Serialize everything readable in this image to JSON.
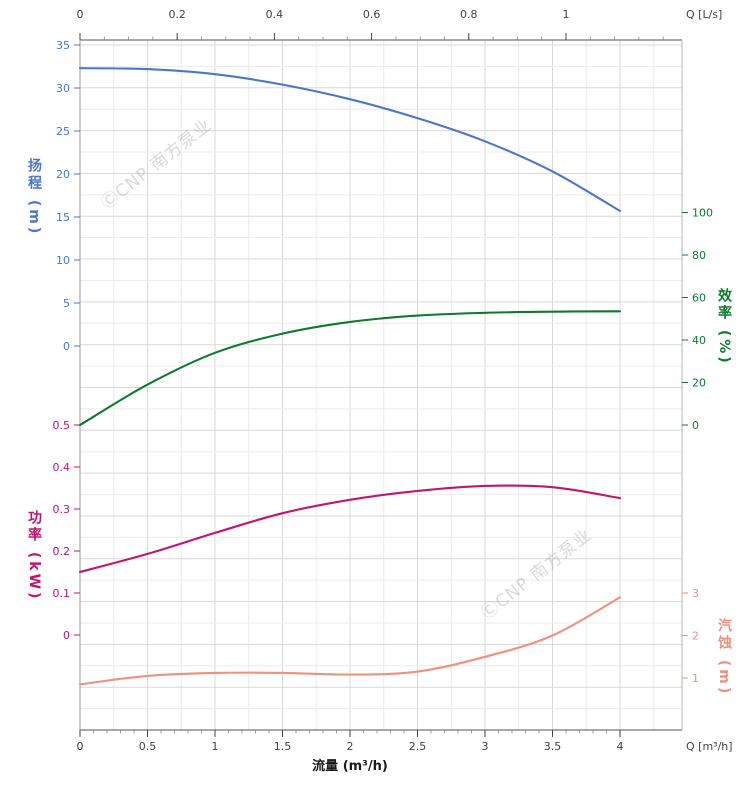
{
  "watermark": {
    "text": "ⒸCNP 南方泵业"
  },
  "labels": {
    "top_axis": "Q [L/s]",
    "bottom_axis": "Q [m³/h]",
    "flow_title": "流量 (m³/h)",
    "head": "扬程 (m)",
    "efficiency": "效率 (%)",
    "power": "功率 (kW)",
    "npsh": "汽蚀 (m)"
  },
  "chart_data": {
    "type": "line",
    "title": "",
    "grid": true,
    "x_axis_bottom": {
      "label": "流量 (m³/h)",
      "unit": "m³/h",
      "min": 0,
      "max": 4,
      "ticks": [
        0,
        0.5,
        1,
        1.5,
        2,
        2.5,
        3,
        3.5,
        4
      ]
    },
    "x_axis_top": {
      "label": "Q [L/s]",
      "unit": "L/s",
      "min": 0,
      "ticks": [
        0,
        0.2,
        0.4,
        0.6,
        0.8,
        1
      ],
      "m3h_per_unit": 3.6
    },
    "y_axes": {
      "head": {
        "label": "扬程 (m)",
        "color": "#4a76cf",
        "min": 0,
        "max": 35,
        "ticks": [
          35,
          30,
          25,
          20,
          15,
          10,
          5,
          0
        ]
      },
      "efficiency": {
        "label": "效率 (%)",
        "color": "#0e7a2e",
        "min": 0,
        "max": 100,
        "ticks": [
          100,
          80,
          60,
          40,
          20,
          0
        ]
      },
      "power": {
        "label": "功率 (kW)",
        "color": "#c2156d",
        "min": 0,
        "max": 0.5,
        "ticks": [
          0.5,
          0.4,
          0.3,
          0.2,
          0.1,
          0
        ]
      },
      "npsh": {
        "label": "汽蚀 (m)",
        "color": "#f0907e",
        "min": 0,
        "max": 3,
        "ticks": [
          3,
          2,
          1
        ]
      }
    },
    "series": [
      {
        "name": "head",
        "axis": "head",
        "color": "#4a76cf",
        "x": [
          0,
          0.5,
          1,
          1.5,
          2,
          2.5,
          3,
          3.5,
          4
        ],
        "y": [
          32.3,
          32.2,
          31.6,
          30.4,
          28.7,
          26.5,
          23.8,
          20.3,
          15.7
        ]
      },
      {
        "name": "efficiency",
        "axis": "efficiency",
        "color": "#0e7a2e",
        "x": [
          0,
          0.5,
          1,
          1.5,
          2,
          2.5,
          3,
          3.5,
          4
        ],
        "y": [
          0,
          19,
          34,
          43,
          48.5,
          51.5,
          52.8,
          53.3,
          53.5
        ]
      },
      {
        "name": "power",
        "axis": "power",
        "color": "#c2156d",
        "x": [
          0,
          0.5,
          1,
          1.5,
          2,
          2.5,
          3,
          3.5,
          4
        ],
        "y": [
          0.15,
          0.193,
          0.243,
          0.29,
          0.322,
          0.343,
          0.355,
          0.352,
          0.326
        ]
      },
      {
        "name": "npsh",
        "axis": "npsh",
        "color": "#f0907e",
        "x": [
          0,
          0.5,
          1,
          1.5,
          2,
          2.5,
          3,
          3.5,
          4
        ],
        "y": [
          0.85,
          1.05,
          1.12,
          1.12,
          1.08,
          1.15,
          1.5,
          2.0,
          2.9
        ]
      }
    ]
  }
}
